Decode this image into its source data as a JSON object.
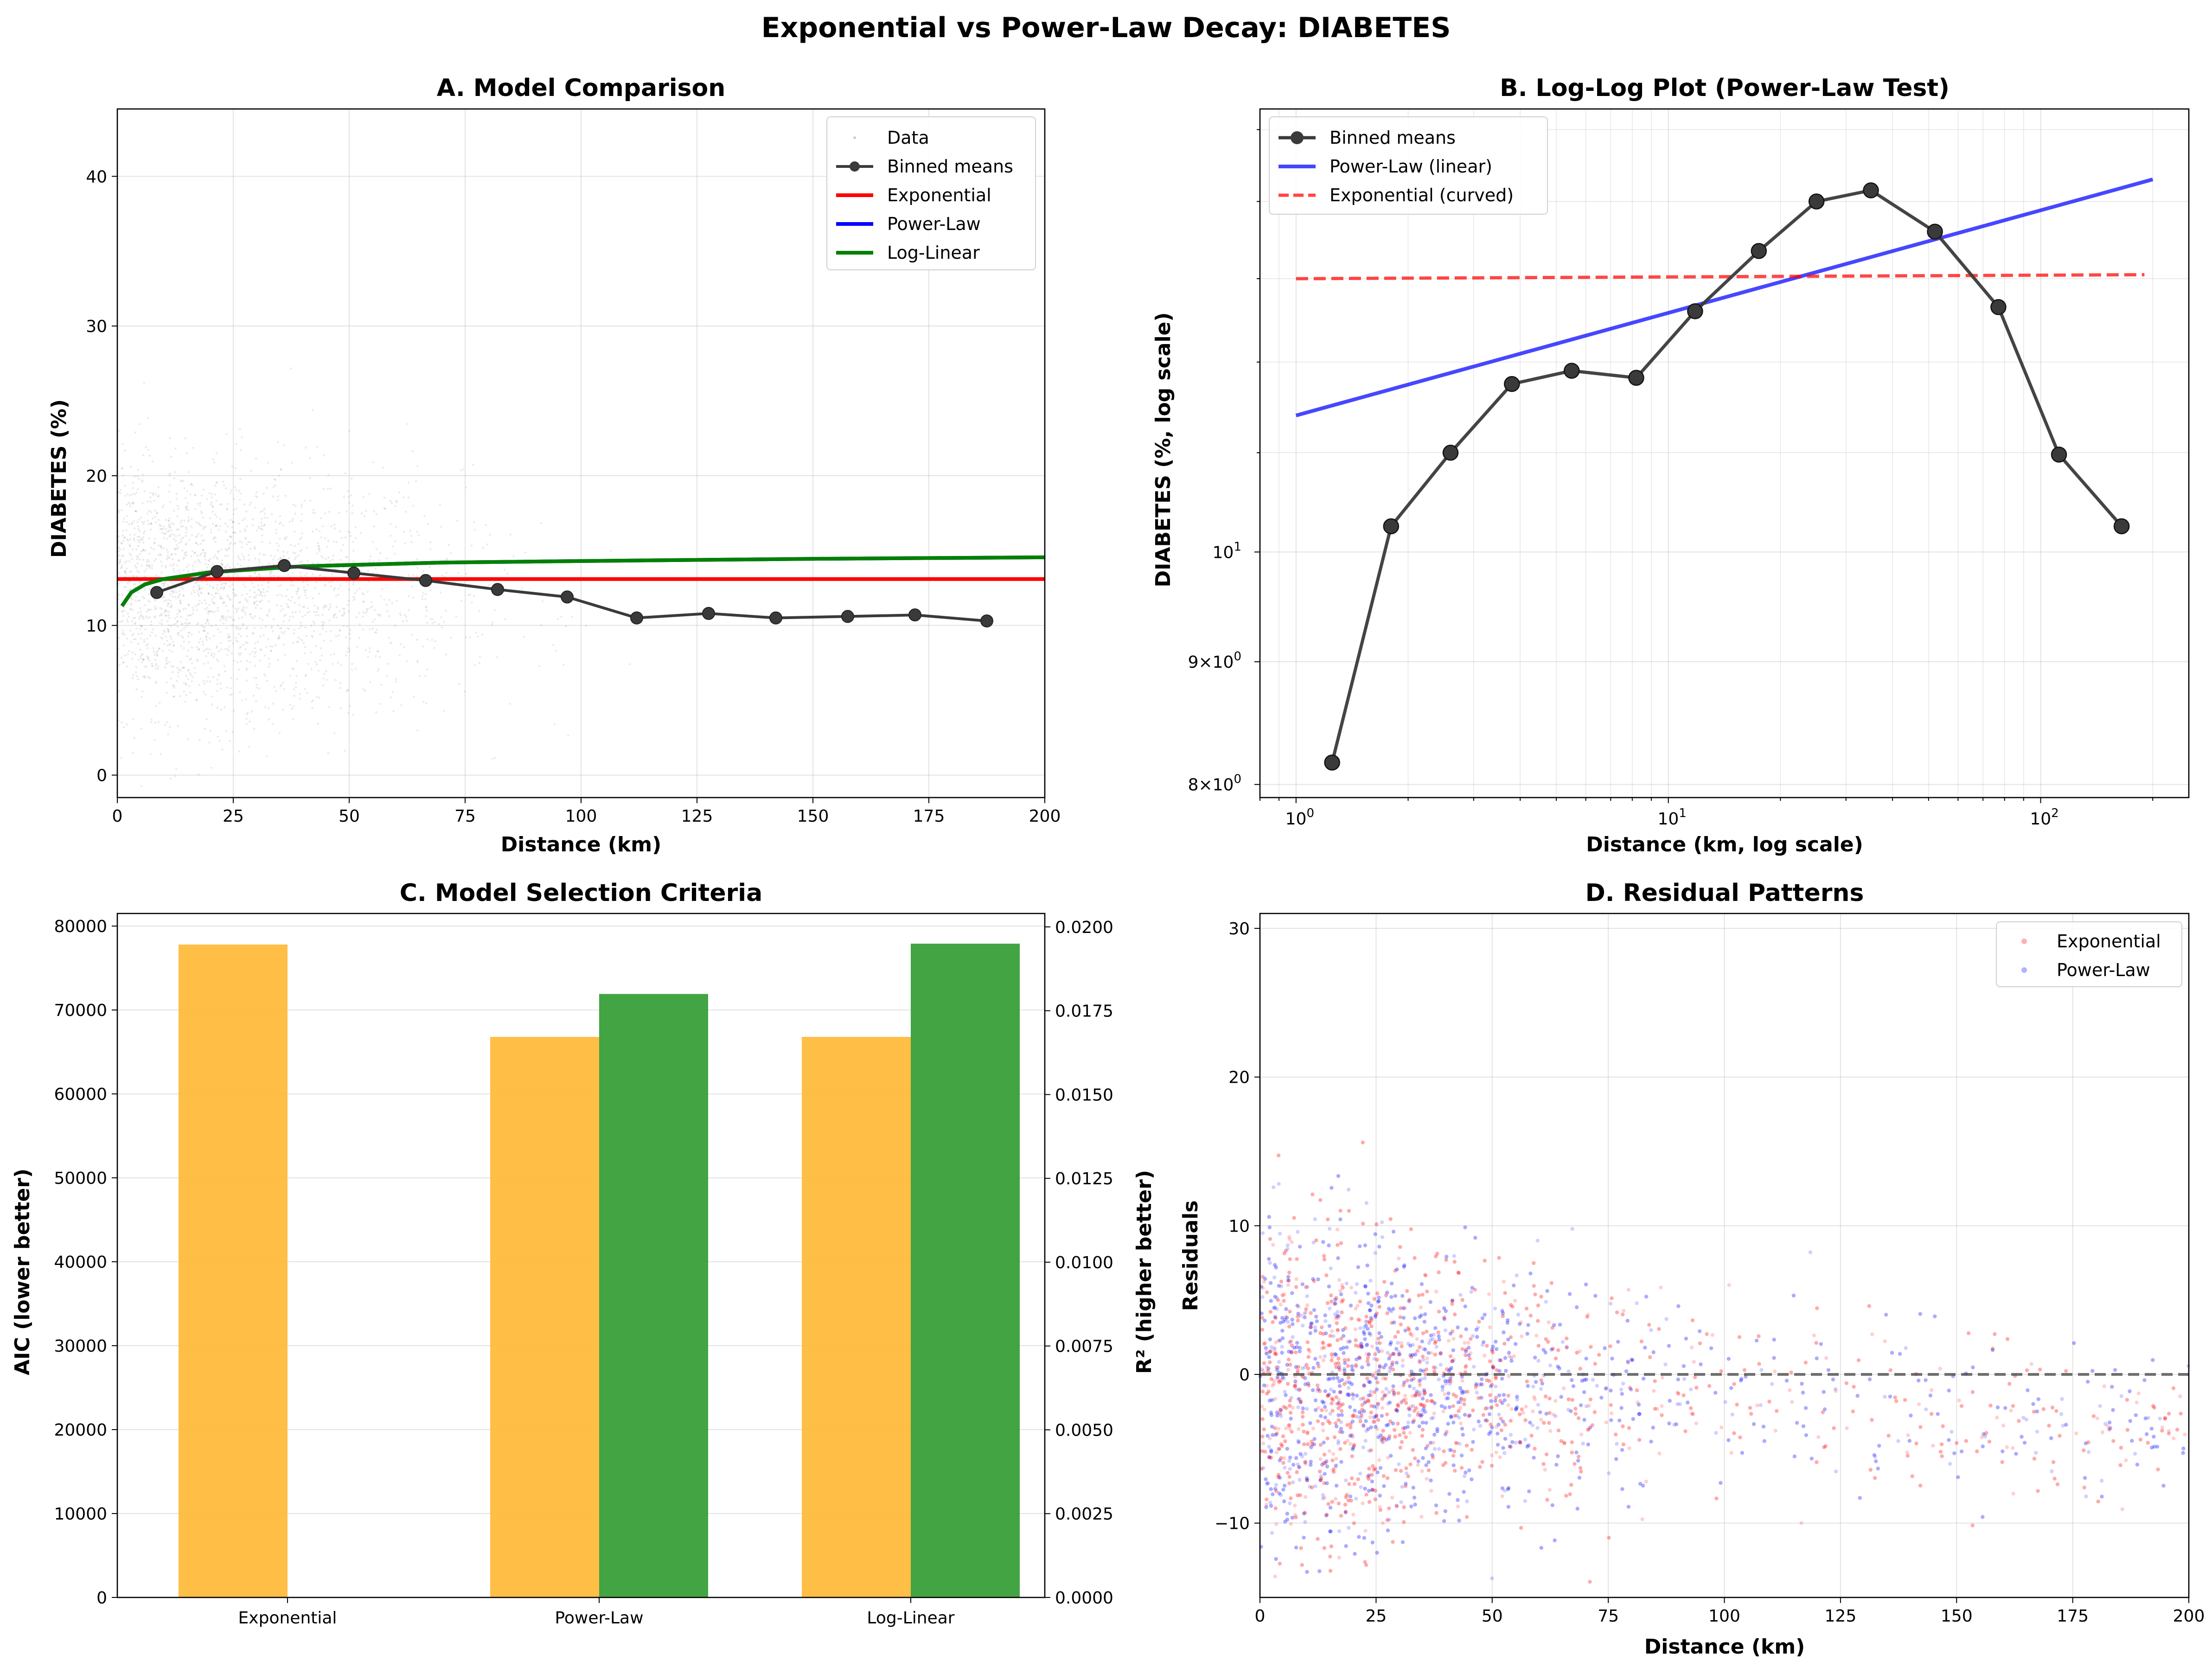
{
  "suptitle": "Exponential vs Power-Law Decay: DIABETES",
  "colors": {
    "exponential": "#ff0000",
    "power_law": "#0000ff",
    "log_linear": "#008000",
    "binned": "#3a3a3a",
    "aic_bar": "#ffb732",
    "r2_bar": "#2e9a2e",
    "aic_axis": "#ffa500",
    "r2_axis": "#008000"
  },
  "chart_data": [
    {
      "panel": "A",
      "type": "line",
      "title": "A. Model Comparison",
      "xlabel": "Distance (km)",
      "ylabel": "DIABETES (%)",
      "xlim": [
        0,
        200
      ],
      "ylim": [
        -1.5,
        44.5
      ],
      "xticks": [
        0,
        25,
        50,
        75,
        100,
        125,
        150,
        175,
        200
      ],
      "yticks": [
        0,
        10,
        20,
        30,
        40
      ],
      "grid": true,
      "legend": {
        "position": "top-right",
        "entries": [
          "Data",
          "Binned means",
          "Exponential",
          "Power-Law",
          "Log-Linear"
        ]
      },
      "binned_means": {
        "x": [
          8.5,
          21.5,
          36,
          51,
          66.5,
          82,
          97,
          112,
          127.5,
          142,
          157.5,
          172,
          187.5
        ],
        "y": [
          12.2,
          13.6,
          14.0,
          13.5,
          13.0,
          12.4,
          11.9,
          10.5,
          10.8,
          10.5,
          10.6,
          10.7,
          10.3
        ]
      },
      "series": [
        {
          "name": "Exponential",
          "x": [
            0,
            200
          ],
          "y": [
            13.1,
            13.1
          ]
        },
        {
          "name": "Power-Law",
          "x": [
            1,
            3,
            6,
            10,
            20,
            40,
            70,
            100,
            150,
            200
          ],
          "y": [
            11.3,
            12.2,
            12.75,
            13.1,
            13.55,
            13.95,
            14.2,
            14.3,
            14.45,
            14.55
          ]
        },
        {
          "name": "Log-Linear",
          "x": [
            1,
            3,
            6,
            10,
            20,
            40,
            70,
            100,
            150,
            200
          ],
          "y": [
            11.3,
            12.2,
            12.75,
            13.1,
            13.55,
            13.95,
            14.2,
            14.3,
            14.45,
            14.55
          ]
        }
      ]
    },
    {
      "panel": "B",
      "type": "line",
      "title": "B. Log-Log Plot (Power-Law Test)",
      "xlabel": "Distance (km, log scale)",
      "ylabel": "DIABETES (%, log scale)",
      "xscale": "log",
      "yscale": "log",
      "xlim": [
        0.8,
        250
      ],
      "ylim": [
        7.9,
        15.3
      ],
      "xtick_labels": [
        "10^0",
        "10^1",
        "10^2"
      ],
      "ytick_labels": [
        "8×10^0",
        "9×10^0",
        "10^1"
      ],
      "grid": true,
      "legend": {
        "position": "top-left",
        "entries": [
          "Binned means",
          "Power-Law (linear)",
          "Exponential (curved)"
        ]
      },
      "series": [
        {
          "name": "Binned means",
          "x": [
            1.25,
            1.8,
            2.6,
            3.8,
            5.5,
            8.2,
            11.8,
            17.5,
            25,
            35,
            52,
            77,
            112,
            165
          ],
          "y": [
            8.17,
            10.25,
            11.0,
            11.75,
            11.9,
            11.82,
            12.6,
            13.35,
            14.0,
            14.15,
            13.6,
            12.65,
            10.98,
            10.25
          ]
        },
        {
          "name": "Power-Law (linear)",
          "x": [
            1,
            200
          ],
          "y": [
            11.4,
            14.3
          ]
        },
        {
          "name": "Exponential (curved)",
          "x": [
            1,
            190
          ],
          "y": [
            13.0,
            13.05
          ]
        }
      ]
    },
    {
      "panel": "C",
      "type": "bar",
      "title": "C. Model Selection Criteria",
      "categories": [
        "Exponential",
        "Power-Law",
        "Log-Linear"
      ],
      "ylabel": "AIC (lower better)",
      "y2label": "R² (higher better)",
      "ylim": [
        0,
        81500
      ],
      "y2lim": [
        0,
        0.0204
      ],
      "yticks": [
        0,
        10000,
        20000,
        30000,
        40000,
        50000,
        60000,
        70000,
        80000
      ],
      "y2ticks": [
        "0.0000",
        "0.0025",
        "0.0050",
        "0.0075",
        "0.0100",
        "0.0125",
        "0.0150",
        "0.0175",
        "0.0200"
      ],
      "grid": true,
      "series": [
        {
          "name": "AIC",
          "values": [
            77800,
            66800,
            66800
          ]
        },
        {
          "name": "R²",
          "values": [
            0.0,
            0.018,
            0.0195
          ]
        }
      ]
    },
    {
      "panel": "D",
      "type": "scatter",
      "title": "D. Residual Patterns",
      "xlabel": "Distance (km)",
      "ylabel": "Residuals",
      "xlim": [
        0,
        200
      ],
      "ylim": [
        -15,
        31
      ],
      "xticks": [
        0,
        25,
        50,
        75,
        100,
        125,
        150,
        175,
        200
      ],
      "yticks": [
        -10,
        0,
        10,
        20,
        30
      ],
      "grid": true,
      "reference_line": 0,
      "legend": {
        "position": "top-right",
        "entries": [
          "Exponential",
          "Power-Law"
        ]
      }
    }
  ]
}
